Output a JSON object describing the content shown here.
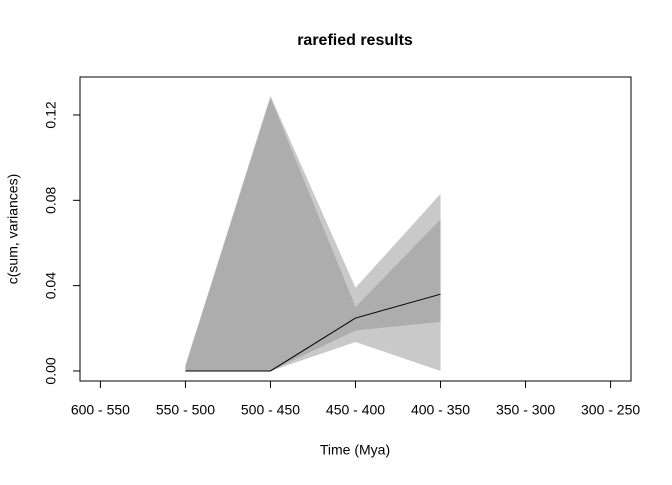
{
  "chart_data": {
    "type": "line",
    "title": "rarefied results",
    "xlabel": "Time (Mya)",
    "ylabel": "c(sum, variances)",
    "categories": [
      "600 - 550",
      "550 - 500",
      "500 - 450",
      "450 - 400",
      "400 - 350",
      "350 - 300",
      "300 - 250"
    ],
    "xlim": [
      0.76,
      7.24
    ],
    "ylim": [
      -0.0047,
      0.1378
    ],
    "yticks": [
      {
        "value": 0,
        "label": "0.00"
      },
      0.04,
      0.08,
      0.12
    ],
    "bands": [
      {
        "color": "#c9c9c9",
        "upper": [
          null,
          0.0028,
          0.129,
          0.039,
          0.083,
          null,
          null
        ],
        "lower": [
          null,
          0,
          0,
          0.0136,
          0,
          null,
          null
        ]
      },
      {
        "color": "#adadad",
        "upper": [
          null,
          0.0022,
          0.128,
          0.03,
          0.071,
          null,
          null
        ],
        "lower": [
          null,
          0,
          0,
          0.019,
          0.023,
          null,
          null
        ]
      }
    ],
    "series": [
      {
        "color": "#000000",
        "values": [
          null,
          0,
          0,
          0.0248,
          0.036,
          null,
          null
        ]
      }
    ]
  }
}
